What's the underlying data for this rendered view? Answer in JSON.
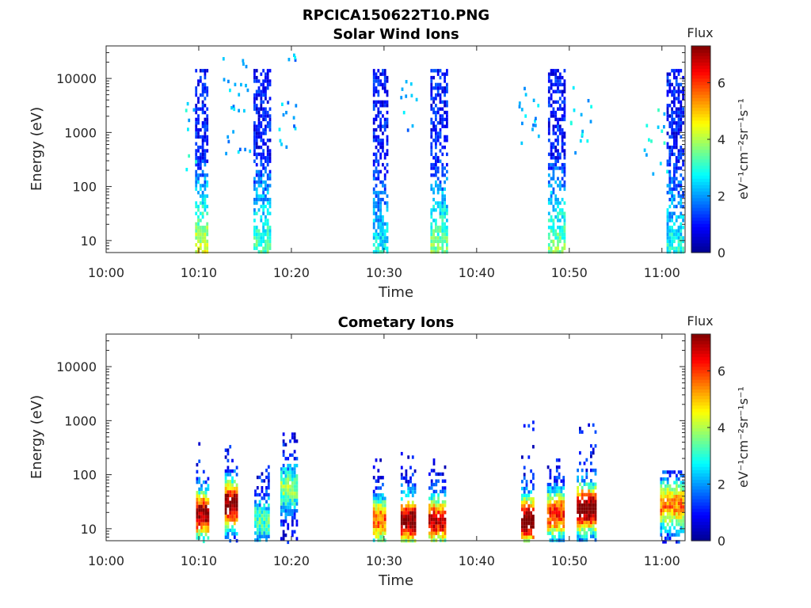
{
  "figure": {
    "title": "RPCICA150622T10.PNG"
  },
  "colors": {
    "colormap": [
      "#00008f",
      "#0000ff",
      "#0080ff",
      "#00ffff",
      "#80ff80",
      "#ffff00",
      "#ff8000",
      "#ff0000",
      "#800000"
    ],
    "axis": "#262626"
  },
  "chart_data": [
    {
      "type": "heatmap",
      "title": "Solar Wind Ions",
      "xlabel": "Time",
      "ylabel": "Energy (eV)",
      "x_ticks": [
        "10:00",
        "10:10",
        "10:20",
        "10:30",
        "10:40",
        "10:50",
        "11:00"
      ],
      "y_ticks": [
        "10",
        "100",
        "1000",
        "10000"
      ],
      "y_scale": "log",
      "ylim": [
        6,
        40000
      ],
      "xlim_minutes": [
        0,
        62.5
      ],
      "colorbar": {
        "title": "Flux",
        "unit": "eV⁻¹cm⁻²sr⁻¹s⁻¹",
        "ticks": [
          "0",
          "2",
          "4",
          "6"
        ],
        "range": [
          0,
          7.3
        ]
      },
      "bursts": [
        {
          "t0": 9.6,
          "t1": 11.0,
          "e_lo": 6,
          "e_hi": 15000,
          "flux_low": 4.5,
          "flux_high": 1.0
        },
        {
          "t0": 15.9,
          "t1": 17.6,
          "e_lo": 6,
          "e_hi": 15000,
          "flux_low": 3.5,
          "flux_high": 1.0
        },
        {
          "t0": 28.8,
          "t1": 30.4,
          "e_lo": 6,
          "e_hi": 15000,
          "flux_low": 2.8,
          "flux_high": 1.0
        },
        {
          "t0": 35.0,
          "t1": 36.8,
          "e_lo": 6,
          "e_hi": 15000,
          "flux_low": 3.8,
          "flux_high": 1.0
        },
        {
          "t0": 47.7,
          "t1": 49.4,
          "e_lo": 6,
          "e_hi": 15000,
          "flux_low": 3.8,
          "flux_high": 1.0
        },
        {
          "t0": 60.5,
          "t1": 62.4,
          "e_lo": 6,
          "e_hi": 15000,
          "flux_low": 3.0,
          "flux_high": 1.0
        }
      ],
      "scatter_regions": [
        {
          "t0": 8.5,
          "t1": 9.6,
          "e_lo": 200,
          "e_hi": 8000,
          "flux": 2.0
        },
        {
          "t0": 12.5,
          "t1": 15.5,
          "e_lo": 400,
          "e_hi": 30000,
          "flux": 1.5
        },
        {
          "t0": 18.5,
          "t1": 20.5,
          "e_lo": 500,
          "e_hi": 30000,
          "flux": 1.5
        },
        {
          "t0": 31.5,
          "t1": 33.5,
          "e_lo": 800,
          "e_hi": 12000,
          "flux": 1.5
        },
        {
          "t0": 44.5,
          "t1": 47.0,
          "e_lo": 300,
          "e_hi": 8000,
          "flux": 1.5
        },
        {
          "t0": 50.0,
          "t1": 52.5,
          "e_lo": 400,
          "e_hi": 8000,
          "flux": 1.8
        },
        {
          "t0": 58.0,
          "t1": 60.5,
          "e_lo": 150,
          "e_hi": 3000,
          "flux": 2.0
        }
      ]
    },
    {
      "type": "heatmap",
      "title": "Cometary Ions",
      "xlabel": "Time",
      "ylabel": "Energy (eV)",
      "x_ticks": [
        "10:00",
        "10:10",
        "10:20",
        "10:30",
        "10:40",
        "10:50",
        "11:00"
      ],
      "y_ticks": [
        "10",
        "100",
        "1000",
        "10000"
      ],
      "y_scale": "log",
      "ylim": [
        6,
        40000
      ],
      "xlim_minutes": [
        0,
        62.5
      ],
      "colorbar": {
        "title": "Flux",
        "unit": "eV⁻¹cm⁻²sr⁻¹s⁻¹",
        "ticks": [
          "0",
          "2",
          "4",
          "6"
        ],
        "range": [
          0,
          7.3
        ]
      },
      "bursts": [
        {
          "t0": 9.7,
          "t1": 11.0,
          "e_lo": 6,
          "e_hi": 400,
          "peak_e": 20,
          "peak_flux": 6.5
        },
        {
          "t0": 12.8,
          "t1": 14.2,
          "e_lo": 6,
          "e_hi": 1000,
          "peak_e": 30,
          "peak_flux": 6.8
        },
        {
          "t0": 16.0,
          "t1": 17.6,
          "e_lo": 6,
          "e_hi": 150,
          "peak_e": 15,
          "peak_flux": 2.5
        },
        {
          "t0": 18.8,
          "t1": 20.5,
          "e_lo": 6,
          "e_hi": 700,
          "peak_e": 60,
          "peak_flux": 3.0
        },
        {
          "t0": 28.8,
          "t1": 30.2,
          "e_lo": 6,
          "e_hi": 200,
          "peak_e": 15,
          "peak_flux": 5.0
        },
        {
          "t0": 31.8,
          "t1": 33.4,
          "e_lo": 6,
          "e_hi": 1000,
          "peak_e": 15,
          "peak_flux": 6.8
        },
        {
          "t0": 34.8,
          "t1": 36.6,
          "e_lo": 6,
          "e_hi": 200,
          "peak_e": 15,
          "peak_flux": 6.0
        },
        {
          "t0": 44.8,
          "t1": 46.2,
          "e_lo": 6,
          "e_hi": 1000,
          "peak_e": 15,
          "peak_flux": 7.0
        },
        {
          "t0": 47.6,
          "t1": 49.5,
          "e_lo": 6,
          "e_hi": 200,
          "peak_e": 20,
          "peak_flux": 5.5
        },
        {
          "t0": 50.8,
          "t1": 52.8,
          "e_lo": 6,
          "e_hi": 1200,
          "peak_e": 25,
          "peak_flux": 7.0
        },
        {
          "t0": 59.8,
          "t1": 62.4,
          "e_lo": 6,
          "e_hi": 120,
          "peak_e": 30,
          "peak_flux": 4.8
        }
      ]
    }
  ]
}
